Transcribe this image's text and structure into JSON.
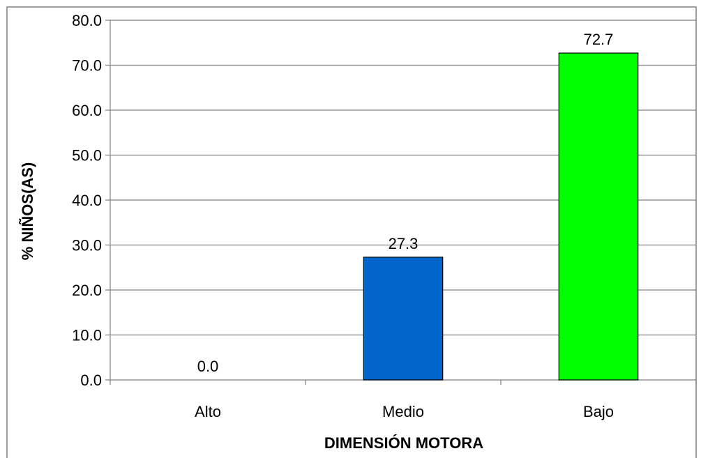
{
  "chart_data": {
    "type": "bar",
    "title": "",
    "xlabel": "DIMENSIÓN MOTORA",
    "ylabel": "% NIÑOS(AS)",
    "categories": [
      "Alto",
      "Medio",
      "Bajo"
    ],
    "values": [
      0.0,
      27.3,
      72.7
    ],
    "value_labels": [
      "0.0",
      "27.3",
      "72.7"
    ],
    "bar_colors": [
      "#0066CC",
      "#0066CC",
      "#00FF00"
    ],
    "ylim": [
      0,
      80
    ],
    "yticks": [
      0,
      10,
      20,
      30,
      40,
      50,
      60,
      70,
      80
    ],
    "ytick_labels": [
      "0.0",
      "10.0",
      "20.0",
      "30.0",
      "40.0",
      "50.0",
      "60.0",
      "70.0",
      "80.0"
    ],
    "grid": true,
    "legend": "none"
  }
}
